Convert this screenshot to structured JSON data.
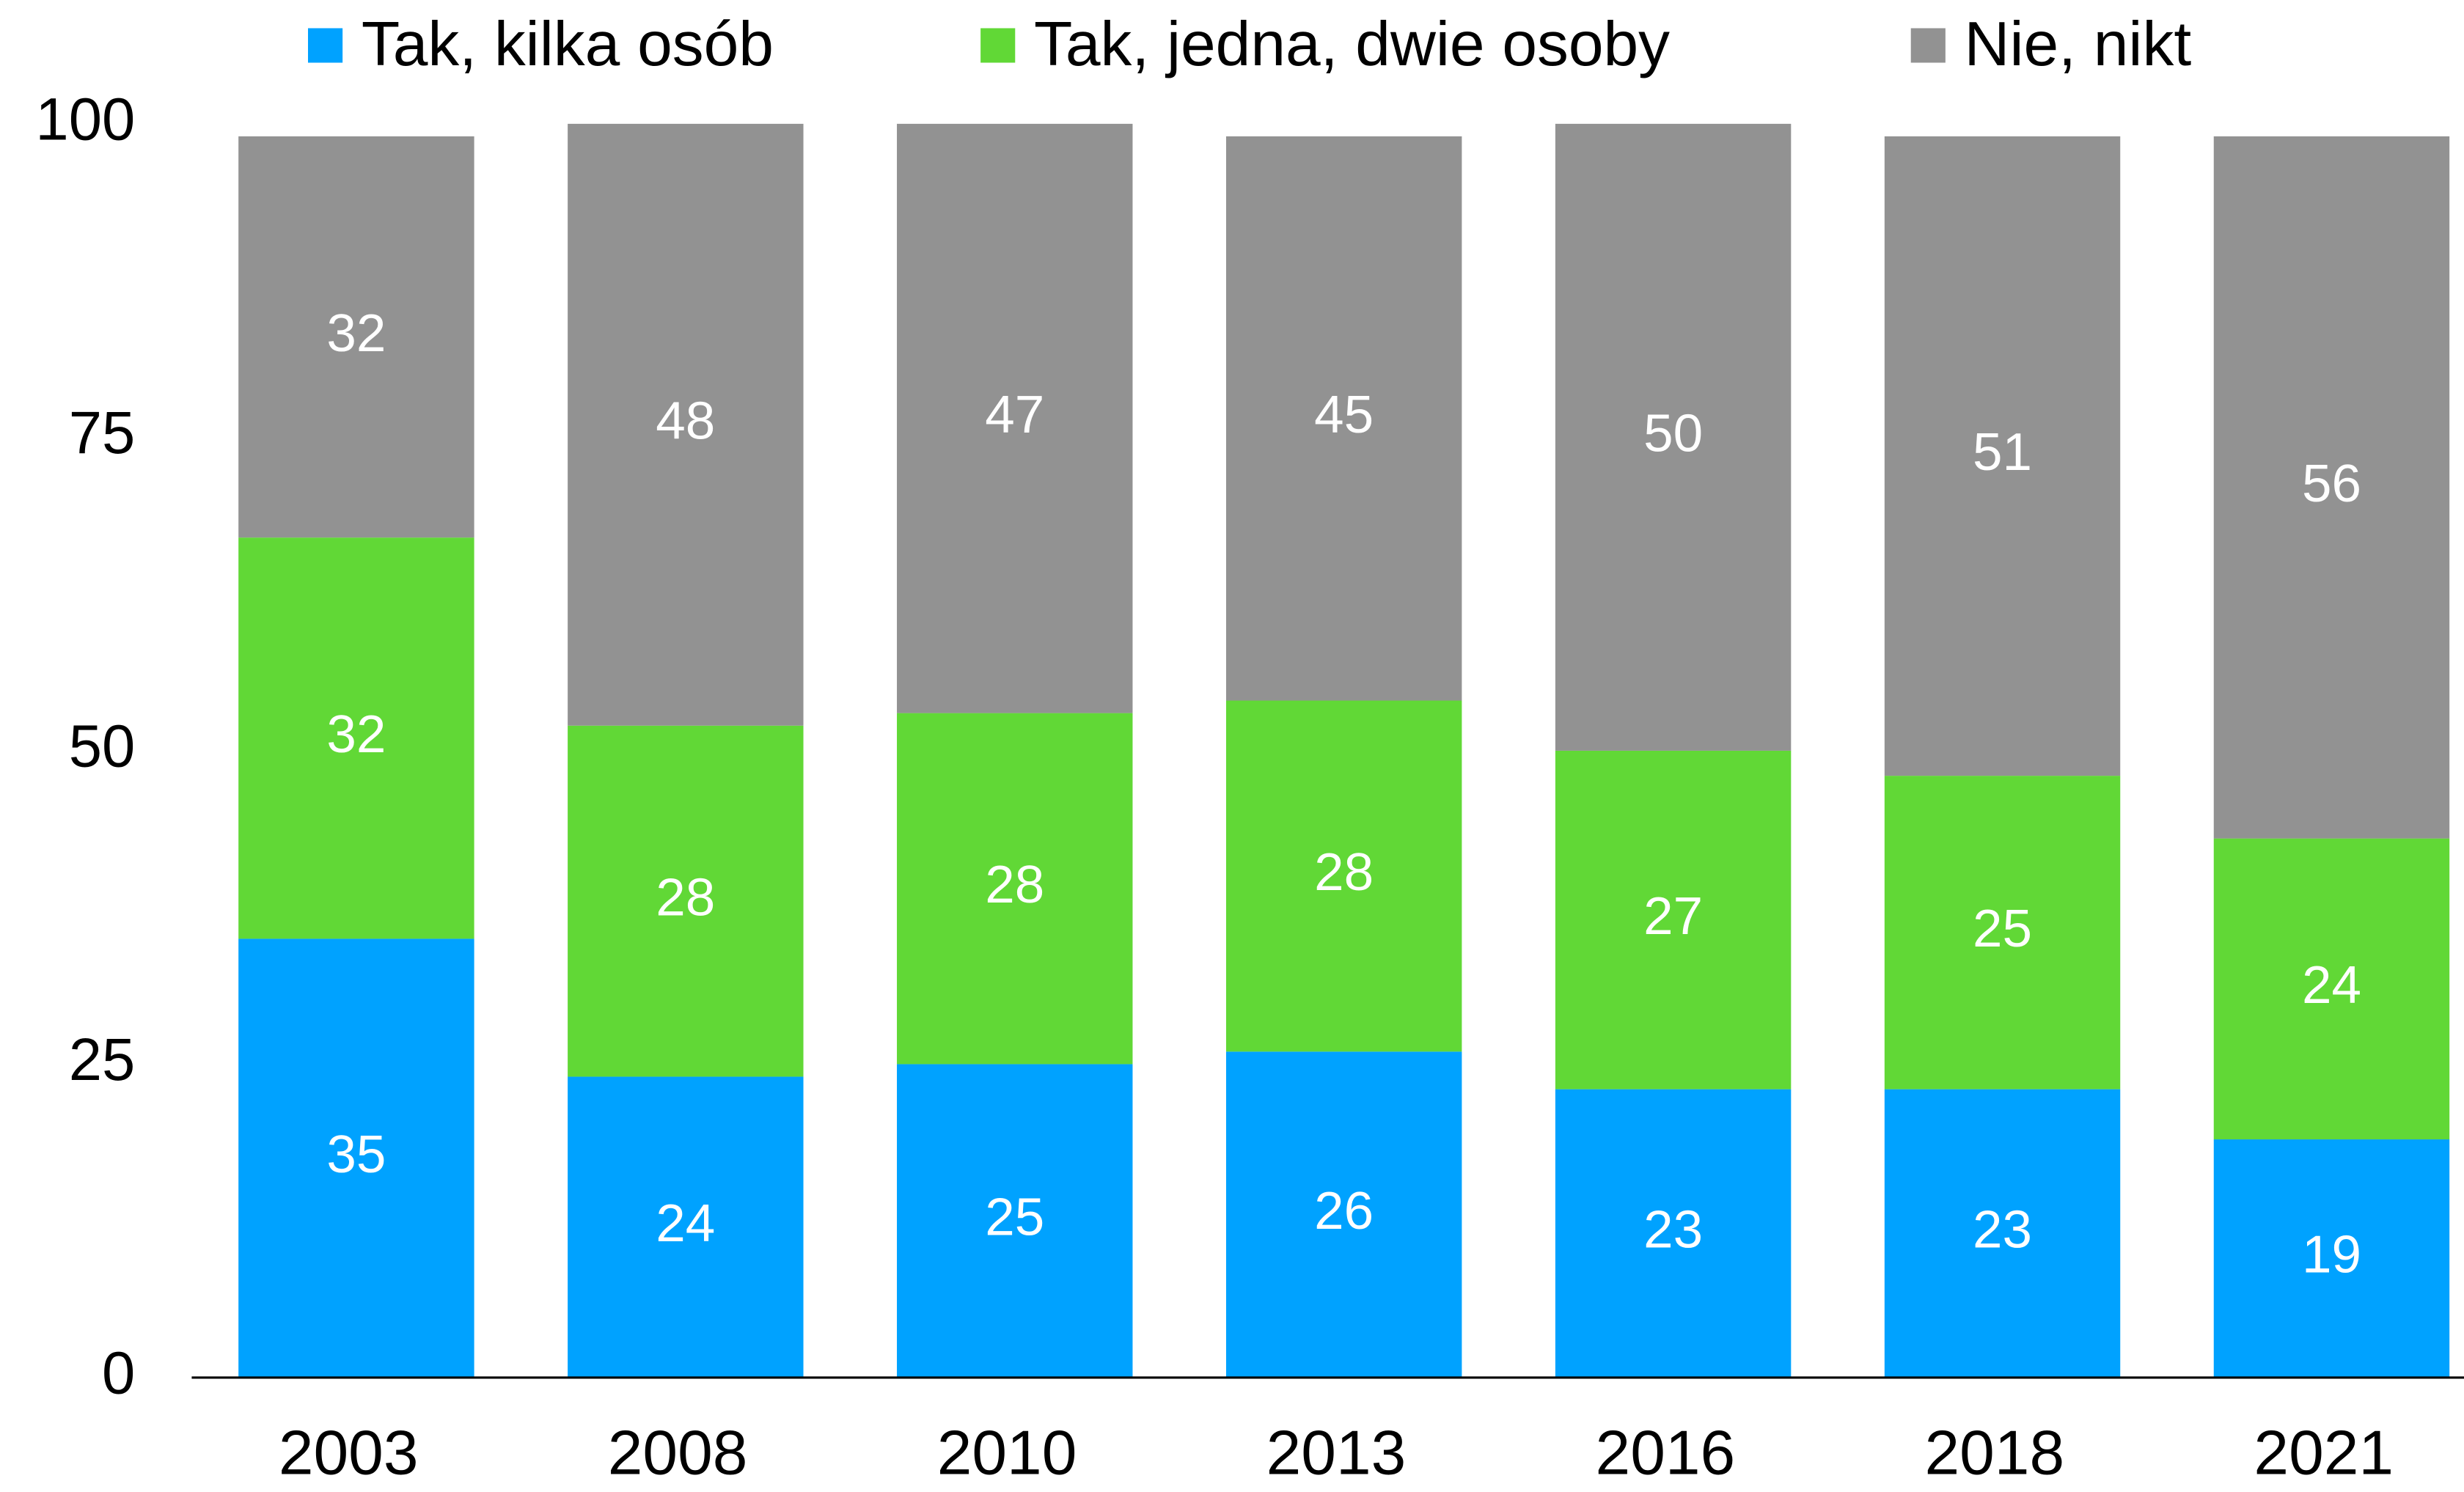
{
  "chart_data": {
    "type": "stacked_bar",
    "categories": [
      "2003",
      "2008",
      "2010",
      "2013",
      "2016",
      "2018",
      "2021"
    ],
    "series": [
      {
        "name": "Tak, kilka osób",
        "color": "#00a2ff",
        "values": [
          35,
          24,
          25,
          26,
          23,
          23,
          19
        ]
      },
      {
        "name": "Tak, jedna, dwie osoby",
        "color": "#61d836",
        "values": [
          32,
          28,
          28,
          28,
          27,
          25,
          24
        ]
      },
      {
        "name": "Nie, nikt",
        "color": "#929292",
        "values": [
          32,
          48,
          47,
          45,
          50,
          51,
          56
        ]
      }
    ],
    "ylim": [
      0,
      100
    ],
    "yticks": [
      0,
      25,
      50,
      75,
      100
    ],
    "grid": false,
    "legend": "top"
  }
}
